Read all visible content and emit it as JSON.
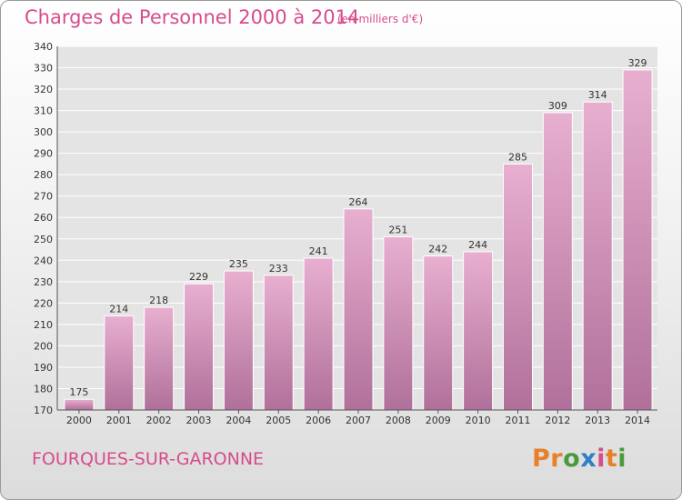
{
  "header": {
    "title": "Charges de Personnel 2000 à 2014",
    "subtitle": "(en milliers d'€)"
  },
  "footer": {
    "commune": "FOURQUES-SUR-GARONNE",
    "logo_text": "Proxiti",
    "logo_colors": [
      "#e8802a",
      "#e8802a",
      "#4a9a3c",
      "#2f7fc4",
      "#d64c8c",
      "#e8802a",
      "#4a9a3c"
    ]
  },
  "colors": {
    "bar_top": "#e8afd0",
    "bar_bottom": "#b0709a",
    "bar_edge": "#ffffff",
    "plot_background": "#e4e4e4",
    "grid": "#ffffff",
    "text": "#333333"
  },
  "chart_data": {
    "type": "bar",
    "title": "Charges de Personnel 2000 à 2014",
    "subtitle": "(en milliers d'€)",
    "categories": [
      "2000",
      "2001",
      "2002",
      "2003",
      "2004",
      "2005",
      "2006",
      "2007",
      "2008",
      "2009",
      "2010",
      "2011",
      "2012",
      "2013",
      "2014"
    ],
    "values": [
      175,
      214,
      218,
      229,
      235,
      233,
      241,
      264,
      251,
      242,
      244,
      285,
      309,
      314,
      329
    ],
    "ylim": [
      170,
      340
    ],
    "yticks": [
      170,
      180,
      190,
      200,
      210,
      220,
      230,
      240,
      250,
      260,
      270,
      280,
      290,
      300,
      310,
      320,
      330,
      340
    ],
    "grid": true,
    "data_labels": true,
    "xlabel": "",
    "ylabel": ""
  }
}
